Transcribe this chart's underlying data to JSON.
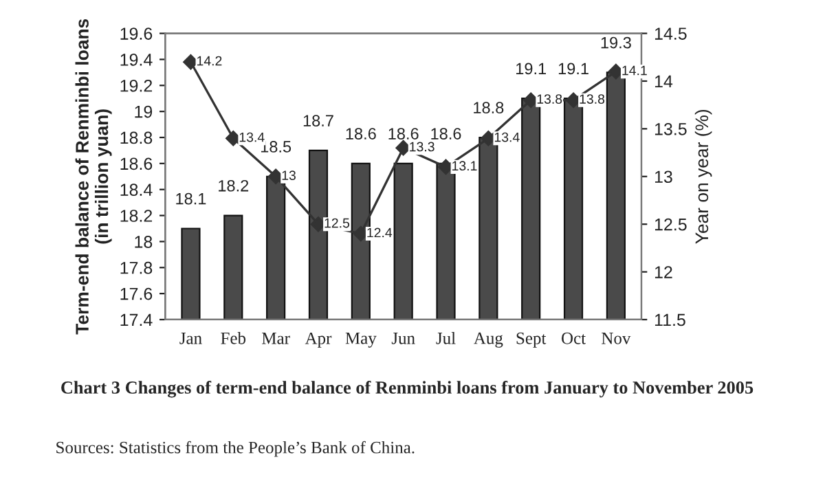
{
  "chart_data": {
    "type": "bar",
    "title": "Chart 3 Changes of term-end balance of Renminbi loans from January to November 2005",
    "ylabel": "Term-end balance of Renminbi loans\n(in trillion yuan)",
    "y2label": "Year on year (%)",
    "annotations": [
      "Sources: Statistics from the People’s Bank of China."
    ],
    "categories": [
      "Jan",
      "Feb",
      "Mar",
      "Apr",
      "May",
      "Jun",
      "Jul",
      "Aug",
      "Sept",
      "Oct",
      "Nov"
    ],
    "series": [
      {
        "color": "#4a4a4a",
        "values": [
          18.1,
          18.2,
          18.5,
          18.7,
          18.6,
          18.6,
          18.6,
          18.8,
          19.1,
          19.1,
          19.3
        ]
      },
      {
        "type": "line",
        "axis": "y2",
        "color": "#333333",
        "values": [
          14.2,
          13.4,
          13,
          12.5,
          12.4,
          13.3,
          13.1,
          13.4,
          13.8,
          13.8,
          14.1
        ]
      }
    ],
    "ylim": [
      17.4,
      19.6
    ],
    "yticks": [
      17.4,
      17.6,
      17.8,
      18,
      18.2,
      18.4,
      18.6,
      18.8,
      19,
      19.2,
      19.4,
      19.6
    ],
    "y2lim": [
      11.5,
      14.5
    ],
    "y2ticks": [
      11.5,
      12,
      12.5,
      13,
      13.5,
      14,
      14.5
    ],
    "data_labels": true,
    "grid": false,
    "legend": false,
    "marker": "diamond",
    "line_style": "solid"
  }
}
